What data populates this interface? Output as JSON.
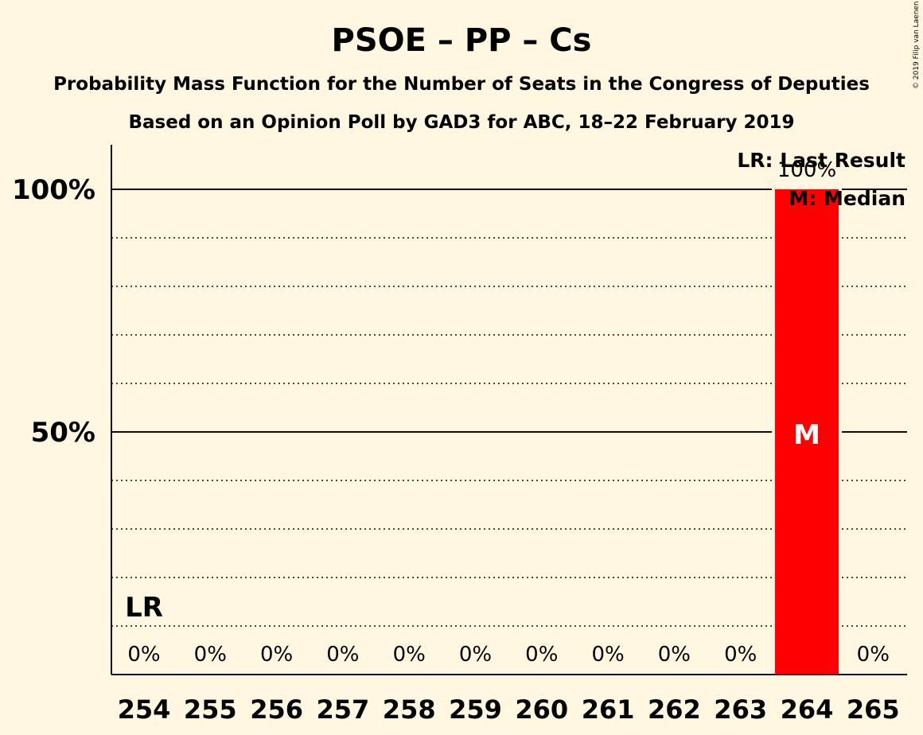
{
  "credit": "© 2019 Filip van Laenen",
  "chart_data": {
    "type": "bar",
    "title": "PSOE – PP – Cs",
    "subtitle": "Probability Mass Function for the Number of Seats in the Congress of Deputies",
    "source": "Based on an Opinion Poll by GAD3 for ABC, 18–22 February 2019",
    "categories": [
      "254",
      "255",
      "256",
      "257",
      "258",
      "259",
      "260",
      "261",
      "262",
      "263",
      "264",
      "265"
    ],
    "values": [
      0,
      0,
      0,
      0,
      0,
      0,
      0,
      0,
      0,
      0,
      100,
      0
    ],
    "value_labels": [
      "0%",
      "0%",
      "0%",
      "0%",
      "0%",
      "0%",
      "0%",
      "0%",
      "0%",
      "0%",
      "100%",
      "0%"
    ],
    "ylim": [
      0,
      110
    ],
    "yticks": [
      {
        "value": 50,
        "label": "50%"
      },
      {
        "value": 100,
        "label": "100%"
      }
    ],
    "minor_grid": [
      10,
      20,
      30,
      40,
      60,
      70,
      80,
      90
    ],
    "bar_color": "#ff0000",
    "last_result": {
      "category": "254",
      "label": "LR"
    },
    "median": {
      "category": "264",
      "label": "M"
    },
    "legend": [
      "LR: Last Result",
      "M: Median"
    ],
    "legend_position": "top-right"
  }
}
